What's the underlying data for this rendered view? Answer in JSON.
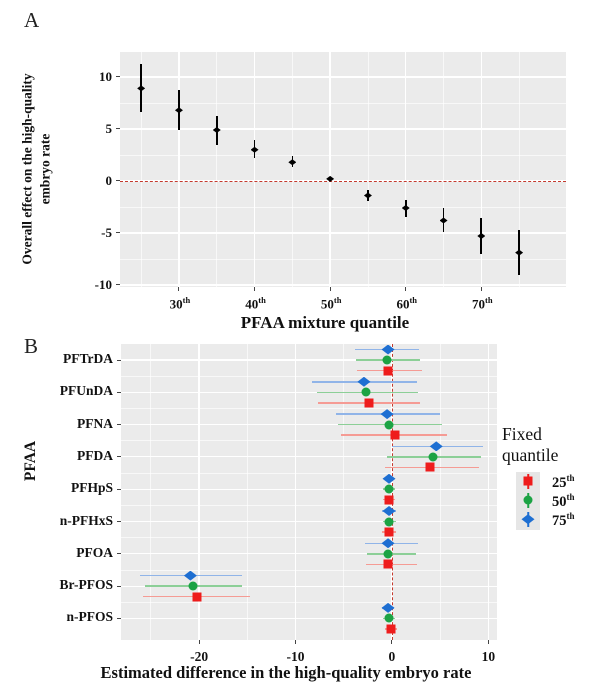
{
  "figure": {
    "panel_a_label": "A",
    "panel_b_label": "B"
  },
  "chart_data": [
    {
      "panel": "A",
      "type": "scatter",
      "subtype": "point-errorbar",
      "xlabel": "PFAA mixture quantile",
      "ylabel": "Overall effect on the  high-quality embryo rate",
      "ylabel_lines": [
        "Overall effect on the  high-quality",
        "embryo rate"
      ],
      "x_quantiles": [
        25,
        30,
        35,
        40,
        45,
        50,
        55,
        60,
        65,
        70,
        75
      ],
      "estimates": [
        8.9,
        6.8,
        4.9,
        3.0,
        1.8,
        0.2,
        -1.4,
        -2.6,
        -3.8,
        -5.3,
        -6.9
      ],
      "ci_lower": [
        6.6,
        4.9,
        3.5,
        2.2,
        1.3,
        0.0,
        -1.9,
        -3.5,
        -4.9,
        -7.0,
        -9.0
      ],
      "ci_upper": [
        11.2,
        8.7,
        6.2,
        3.9,
        2.4,
        0.4,
        -0.9,
        -1.8,
        -2.6,
        -3.6,
        -4.7
      ],
      "xticks": [
        {
          "v": 30,
          "label": "30",
          "sup": "th"
        },
        {
          "v": 40,
          "label": "40",
          "sup": "th"
        },
        {
          "v": 50,
          "label": "50",
          "sup": "th"
        },
        {
          "v": 60,
          "label": "60",
          "sup": "th"
        },
        {
          "v": 70,
          "label": "70",
          "sup": "th"
        }
      ],
      "yticks": [
        10,
        5,
        0,
        -5,
        -10
      ],
      "xlim": [
        22.2,
        81.2
      ],
      "ylim": [
        -10.2,
        12.4
      ],
      "ref_line_y": 0,
      "point_color": "#000000",
      "ref_color": "#c43a2e",
      "grid": true,
      "panel_bg": "#ebebeb"
    },
    {
      "panel": "B",
      "type": "forest",
      "subtype": "dodged-pointrange",
      "xlabel": "Estimated difference in the high-quality embryo rate",
      "ylabel": "PFAA",
      "categories": [
        "PFTrDA",
        "PFUnDA",
        "PFNA",
        "PFDA",
        "PFHpS",
        "n-PFHxS",
        "PFOA",
        "Br-PFOS",
        "n-PFOS"
      ],
      "series": [
        {
          "name": "75",
          "sup": "th",
          "marker": "diamond",
          "color": "#1e6fd2",
          "ci_color": "#90b4e8",
          "row": -1,
          "estimates": [
            -0.4,
            -2.9,
            -0.5,
            4.6,
            -0.3,
            -0.3,
            -0.4,
            -20.9,
            -0.4
          ],
          "lower": [
            -3.8,
            -8.3,
            -5.8,
            0.0,
            -0.9,
            -1.0,
            -2.8,
            -26.1,
            -1.0
          ],
          "upper": [
            2.8,
            2.6,
            5.0,
            9.4,
            0.3,
            0.4,
            2.7,
            -15.6,
            0.2
          ]
        },
        {
          "name": "50",
          "sup": "th",
          "marker": "circle",
          "color": "#1ca344",
          "ci_color": "#8ccf97",
          "row": 0,
          "estimates": [
            -0.5,
            -2.7,
            -0.3,
            4.3,
            -0.3,
            -0.3,
            -0.4,
            -20.6,
            -0.3
          ],
          "lower": [
            -3.7,
            -7.8,
            -5.6,
            -0.5,
            -0.9,
            -0.9,
            -2.6,
            -25.6,
            -0.9
          ],
          "upper": [
            2.9,
            2.7,
            5.2,
            9.2,
            0.3,
            0.4,
            2.5,
            -15.5,
            0.3
          ]
        },
        {
          "name": "25",
          "sup": "th",
          "marker": "square",
          "color": "#ee1c1c",
          "ci_color": "#f59b94",
          "row": 1,
          "estimates": [
            -0.4,
            -2.4,
            0.3,
            4.0,
            -0.3,
            -0.3,
            -0.4,
            -20.2,
            -0.1
          ],
          "lower": [
            -3.6,
            -7.7,
            -5.3,
            -0.7,
            -0.9,
            -1.0,
            -2.7,
            -25.8,
            -0.7
          ],
          "upper": [
            3.1,
            2.9,
            5.7,
            9.0,
            0.3,
            0.4,
            2.6,
            -14.7,
            0.5
          ]
        }
      ],
      "xticks": [
        -20,
        -10,
        0,
        10
      ],
      "xlim": [
        -28.1,
        10.9
      ],
      "ref_line_x": 0,
      "ref_color": "#c43a2e",
      "grid": true,
      "panel_bg": "#ebebeb",
      "legend_position": "right"
    }
  ],
  "legend": {
    "title_lines": [
      "Fixed",
      "quantile"
    ],
    "entries": [
      {
        "label": "25",
        "sup": "th",
        "color": "#ee1c1c",
        "marker": "square"
      },
      {
        "label": "50",
        "sup": "th",
        "color": "#1ca344",
        "marker": "circle"
      },
      {
        "label": "75",
        "sup": "th",
        "color": "#1e6fd2",
        "marker": "diamond"
      }
    ]
  }
}
